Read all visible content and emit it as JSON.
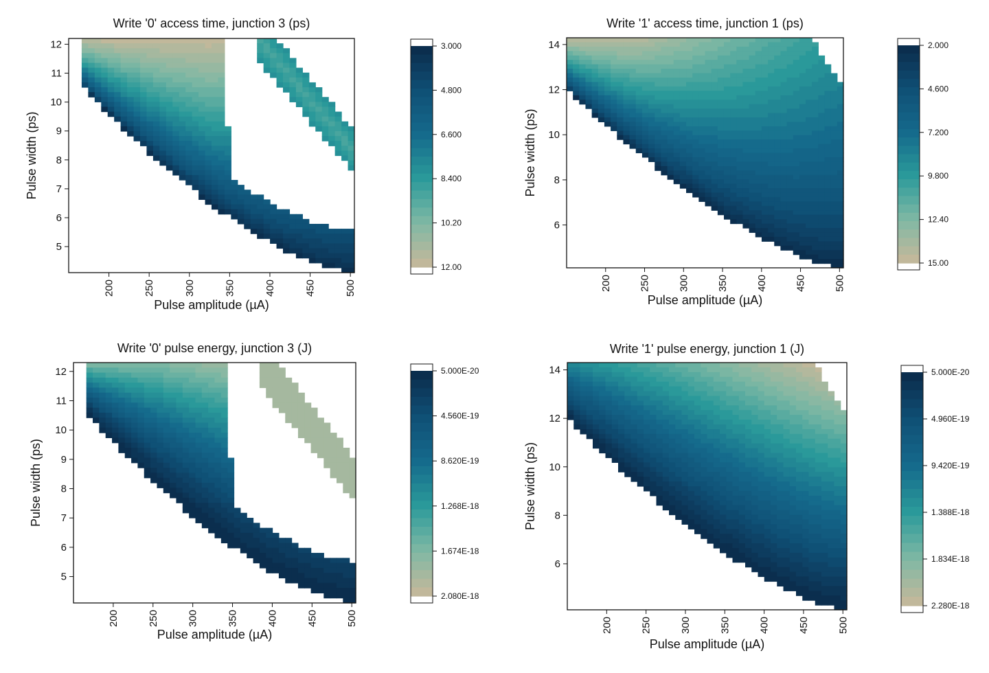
{
  "chart_data": [
    {
      "type": "heatmap",
      "title": "Write '0' access time, junction 3 (ps)",
      "xlabel": "Pulse amplitude (µA)",
      "ylabel": "Pulse width (ps)",
      "xlim": [
        150,
        505
      ],
      "ylim": [
        4.1,
        12.2
      ],
      "xticks": [
        "200",
        "250",
        "300",
        "350",
        "400",
        "450",
        "500"
      ],
      "yticks": [
        "5",
        "6",
        "7",
        "8",
        "9",
        "10",
        "11",
        "12"
      ],
      "region": "w0",
      "value_range": [
        3.0,
        12.0
      ],
      "colorbar_reversed": false,
      "colorbar_labels": [
        "3.000",
        "4.800",
        "6.600",
        "8.400",
        "10.20",
        "12.00"
      ]
    },
    {
      "type": "heatmap",
      "title": "Write '1' access time, junction 1 (ps)",
      "xlabel": "Pulse amplitude (µA)",
      "ylabel": "Pulse width (ps)",
      "xlim": [
        150,
        505
      ],
      "ylim": [
        4.1,
        14.3
      ],
      "xticks": [
        "200",
        "250",
        "300",
        "350",
        "400",
        "450",
        "500"
      ],
      "yticks": [
        "6",
        "8",
        "10",
        "12",
        "14"
      ],
      "region": "w1",
      "value_range": [
        2.0,
        15.0
      ],
      "colorbar_reversed": false,
      "colorbar_labels": [
        "2.000",
        "4.600",
        "7.200",
        "9.800",
        "12.40",
        "15.00"
      ]
    },
    {
      "type": "heatmap",
      "title": "Write '0' pulse energy, junction 3 (J)",
      "xlabel": "Pulse amplitude (µA)",
      "ylabel": "Pulse width (ps)",
      "xlim": [
        150,
        505
      ],
      "ylim": [
        4.1,
        12.3
      ],
      "xticks": [
        "200",
        "250",
        "300",
        "350",
        "400",
        "450",
        "500"
      ],
      "yticks": [
        "5",
        "6",
        "7",
        "8",
        "9",
        "10",
        "11",
        "12"
      ],
      "region": "w0",
      "value_range": [
        5e-20,
        2.08e-18
      ],
      "colorbar_reversed": false,
      "colorbar_labels": [
        "5.000E-20",
        "4.560E-19",
        "8.620E-19",
        "1.268E-18",
        "1.674E-18",
        "2.080E-18"
      ]
    },
    {
      "type": "heatmap",
      "title": "Write '1' pulse energy, junction 1 (J)",
      "xlabel": "Pulse amplitude (µA)",
      "ylabel": "Pulse width (ps)",
      "xlim": [
        150,
        505
      ],
      "ylim": [
        4.1,
        14.3
      ],
      "xticks": [
        "200",
        "250",
        "300",
        "350",
        "400",
        "450",
        "500"
      ],
      "yticks": [
        "6",
        "8",
        "10",
        "12",
        "14"
      ],
      "region": "w1",
      "value_range": [
        5e-20,
        2.28e-18
      ],
      "colorbar_reversed": false,
      "colorbar_labels": [
        "5.000E-20",
        "4.960E-19",
        "9.420E-19",
        "1.388E-18",
        "1.834E-18",
        "2.280E-18"
      ]
    }
  ],
  "colormap": [
    "#0b2a4a",
    "#0f4f75",
    "#156a8c",
    "#2a9a9a",
    "#7fb8a4",
    "#c8b89a"
  ]
}
